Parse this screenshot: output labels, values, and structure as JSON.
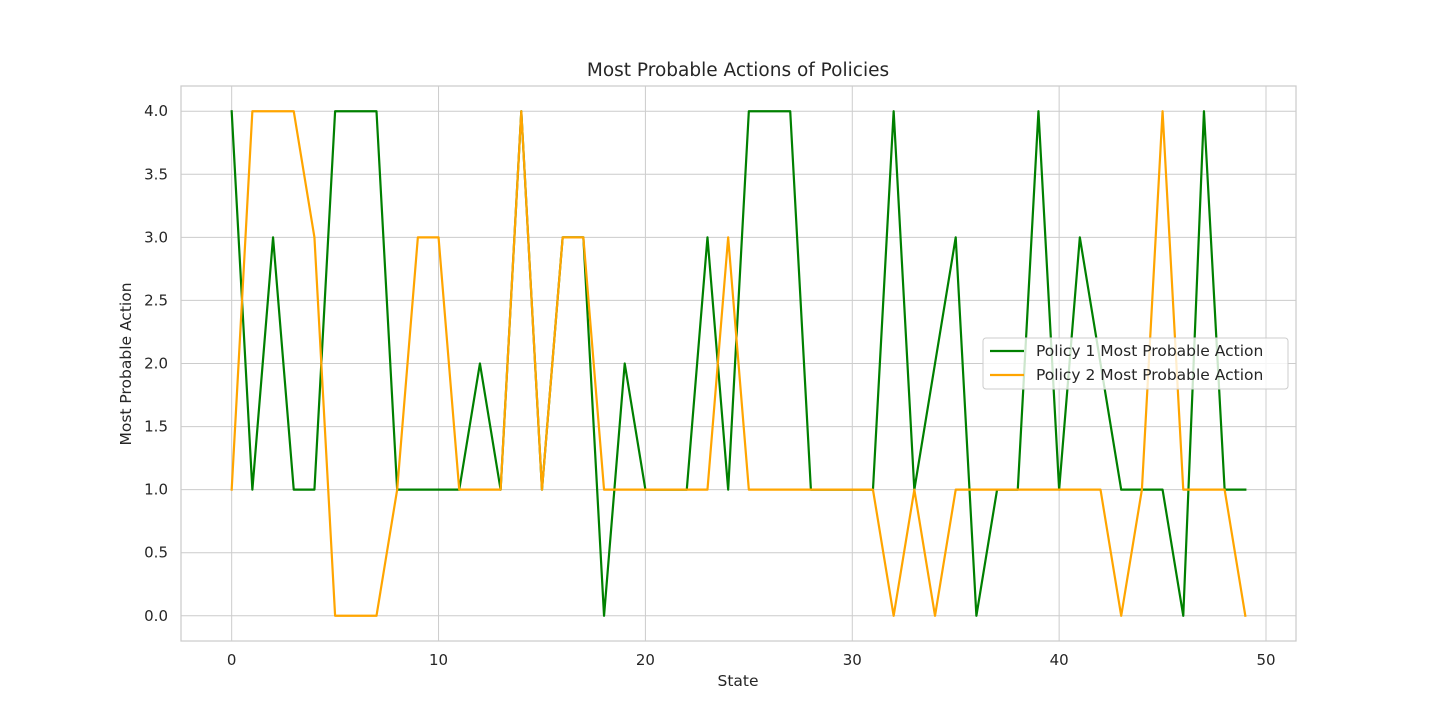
{
  "chart_data": {
    "type": "line",
    "title": "Most Probable Actions of Policies",
    "xlabel": "State",
    "ylabel": "Most Probable Action",
    "xlim": [
      -2.45,
      51.45
    ],
    "ylim": [
      -0.2,
      4.2
    ],
    "xticks": [
      0,
      10,
      20,
      30,
      40,
      50
    ],
    "xtick_labels": [
      "0",
      "10",
      "20",
      "30",
      "40",
      "50"
    ],
    "yticks": [
      0,
      0.5,
      1,
      1.5,
      2,
      2.5,
      3,
      3.5,
      4
    ],
    "ytick_labels": [
      "0.0",
      "0.5",
      "1.0",
      "1.5",
      "2.0",
      "2.5",
      "3.0",
      "3.5",
      "4.0"
    ],
    "grid": true,
    "legend_position": "center-right",
    "x": [
      0,
      1,
      2,
      3,
      4,
      5,
      6,
      7,
      8,
      9,
      10,
      11,
      12,
      13,
      14,
      15,
      16,
      17,
      18,
      19,
      20,
      21,
      22,
      23,
      24,
      25,
      26,
      27,
      28,
      29,
      30,
      31,
      32,
      33,
      34,
      35,
      36,
      37,
      38,
      39,
      40,
      41,
      42,
      43,
      44,
      45,
      46,
      47,
      48,
      49
    ],
    "series": [
      {
        "name": "Policy 1 Most Probable Action",
        "color": "#008000",
        "values": [
          4,
          1,
          3,
          1,
          1,
          4,
          4,
          4,
          1,
          1,
          1,
          1,
          2,
          1,
          4,
          1,
          3,
          3,
          0,
          2,
          1,
          1,
          1,
          3,
          1,
          4,
          4,
          4,
          1,
          1,
          1,
          1,
          4,
          1,
          2,
          3,
          0,
          1,
          1,
          4,
          1,
          3,
          2,
          1,
          1,
          1,
          0,
          4,
          1,
          1
        ]
      },
      {
        "name": "Policy 2 Most Probable Action",
        "color": "#FFA500",
        "values": [
          1,
          4,
          4,
          4,
          3,
          0,
          0,
          0,
          1,
          3,
          3,
          1,
          1,
          1,
          4,
          1,
          3,
          3,
          1,
          1,
          1,
          1,
          1,
          1,
          3,
          1,
          1,
          1,
          1,
          1,
          1,
          1,
          0,
          1,
          0,
          1,
          1,
          1,
          1,
          1,
          1,
          1,
          1,
          0,
          1,
          4,
          1,
          1,
          1,
          0
        ]
      }
    ]
  }
}
